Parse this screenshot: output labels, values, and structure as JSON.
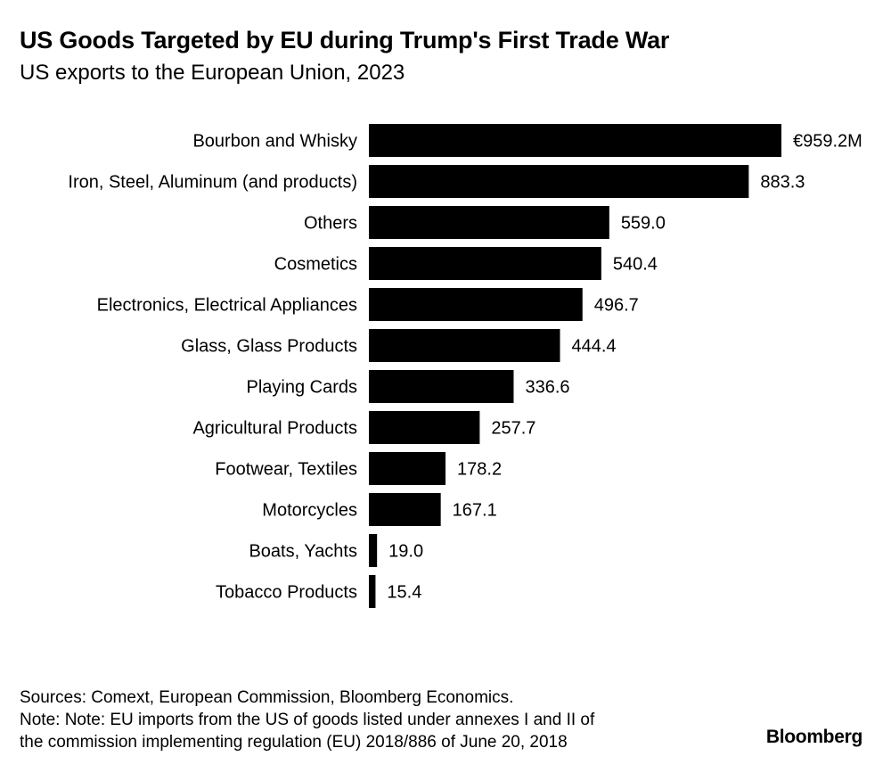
{
  "header": {
    "title": "US Goods Targeted by EU during Trump's First Trade War",
    "subtitle": "US exports to the European Union, 2023"
  },
  "chart_data": {
    "type": "bar",
    "orientation": "horizontal",
    "title": "US Goods Targeted by EU during Trump's First Trade War",
    "subtitle": "US exports to the European Union, 2023",
    "unit": "€M",
    "categories": [
      "Bourbon and Whisky",
      "Iron, Steel, Aluminum (and products)",
      "Others",
      "Cosmetics",
      "Electronics, Electrical Appliances",
      "Glass, Glass Products",
      "Playing Cards",
      "Agricultural Products",
      "Footwear, Textiles",
      "Motorcycles",
      "Boats, Yachts",
      "Tobacco Products"
    ],
    "values": [
      959.2,
      883.3,
      559.0,
      540.4,
      496.7,
      444.4,
      336.6,
      257.7,
      178.2,
      167.1,
      19.0,
      15.4
    ],
    "value_labels": [
      "€959.2M",
      "883.3",
      "559.0",
      "540.4",
      "496.7",
      "444.4",
      "336.6",
      "257.7",
      "178.2",
      "167.1",
      "19.0",
      "15.4"
    ],
    "xlim": [
      0,
      959.2
    ],
    "bar_color": "#000000",
    "grid": false,
    "legend": "none"
  },
  "footer": {
    "sources": "Sources: Comext, European Commission, Bloomberg Economics.",
    "note_line1": "Note: Note: EU imports from the US of goods listed under annexes I and II of",
    "note_line2": "the commission implementing regulation (EU) 2018/886 of June 20, 2018"
  },
  "branding": {
    "logo_text": "Bloomberg"
  }
}
